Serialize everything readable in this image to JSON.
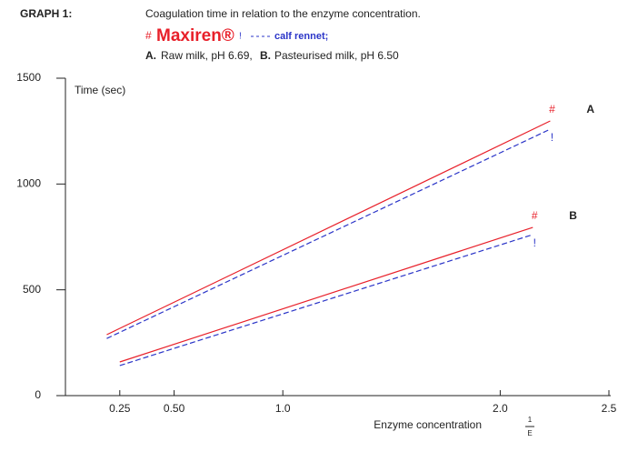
{
  "chart_data": {
    "type": "line",
    "label": "GRAPH 1:",
    "title": "Coagulation time in relation to the enzyme concentration.",
    "legend": [
      {
        "symbol": "#",
        "label": "Maxiren®",
        "color": "#e8202a"
      },
      {
        "symbol": "!",
        "label": "calf rennet;",
        "color": "#2b35c8"
      }
    ],
    "subtitle": {
      "a": "A.",
      "a_text": "Raw milk, pH 6.69,",
      "b": "B.",
      "b_text": "Pasteurised milk, pH 6.50"
    },
    "ylabel": "Time (sec)",
    "xlabel": "Enzyme concentration",
    "xlabel_fraction": [
      "1",
      "E"
    ],
    "xlim": [
      0,
      2.5
    ],
    "ylim": [
      0,
      1500
    ],
    "xticks": [
      0.25,
      {
        "value": 0.5,
        "label": "0.50"
      },
      {
        "value": 1,
        "label": "1.0"
      },
      {
        "value": 2,
        "label": "2.0"
      },
      2.5
    ],
    "yticks": [
      0,
      500,
      1000,
      1500
    ],
    "series": [
      {
        "name": "A",
        "marker": "#",
        "color": "#e8202a",
        "dashed": false,
        "x": [
          0.19,
          2.23
        ],
        "values": [
          288,
          1298
        ]
      },
      {
        "marker": "!",
        "color": "#2b35c8",
        "dashed": true,
        "x": [
          0.19,
          2.23
        ],
        "values": [
          270,
          1259
        ]
      },
      {
        "name": "B",
        "marker": "#",
        "color": "#e8202a",
        "dashed": false,
        "x": [
          0.25,
          2.15
        ],
        "values": [
          159,
          795
        ]
      },
      {
        "marker": "!",
        "color": "#2b35c8",
        "dashed": true,
        "x": [
          0.25,
          2.15
        ],
        "values": [
          142,
          761
        ]
      }
    ]
  }
}
